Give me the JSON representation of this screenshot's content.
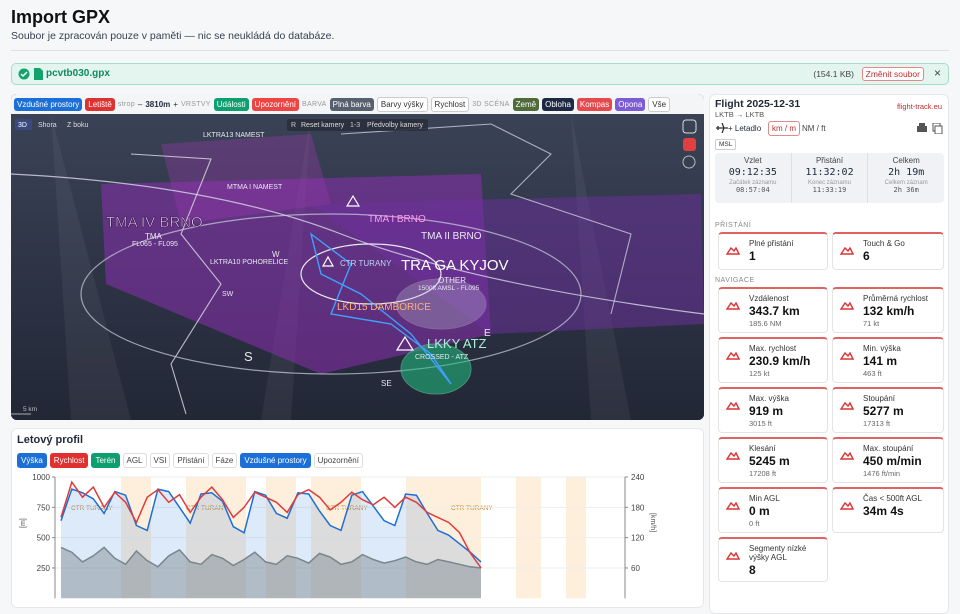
{
  "header": {
    "title": "Import GPX",
    "subtitle": "Soubor je zpracován pouze v paměti — nic se neukládá do databáze."
  },
  "file": {
    "name": "pcvtb030.gpx",
    "size": "(154.1 KB)",
    "change": "Změnit soubor",
    "close": "×"
  },
  "toolbar": [
    "Vzdušné prostory",
    "Letiště",
    "strop",
    "–",
    "3810m",
    "+",
    "VRSTVY",
    "Události",
    "Upozornění",
    "BARVA",
    "Plná barva",
    "Barvy výšky",
    "Rychlost",
    "3D SCÉNA",
    "Země",
    "Obloha",
    "Kompas",
    "Opona",
    "Vše"
  ],
  "map": {
    "view": [
      "3D",
      "Shora",
      "Z boku"
    ],
    "camera": [
      "R",
      "Reset kamery",
      "1-3",
      "Předvolby kamery"
    ],
    "labels": [
      "LKTRA13 NAMEST",
      "MTMA I NAMEST",
      "TMA IV BRNO",
      "TMA",
      "FL065 - FL095",
      "TMA I BRNO",
      "TMA II BRNO",
      "LKTRA10 POHORELICE",
      "W",
      "CTR TURANY",
      "TRA GA KYJOV",
      "OTHER",
      "1500ft AMSL - FL095",
      "SW",
      "LKD15 DAMBORICE",
      "E",
      "LKKY ATZ",
      "CROSSED - ATZ",
      "S",
      "SE"
    ],
    "scale": "5 km"
  },
  "profile": {
    "title": "Letový profil",
    "buttons": [
      "Výška",
      "Rychlost",
      "Terén",
      "AGL",
      "VSI",
      "Přistání",
      "Fáze",
      "Vzdušné prostory",
      "Upozornění"
    ]
  },
  "chart_data": {
    "type": "line",
    "ylabel": "[m]",
    "y2label": "[km/h]",
    "ylim": [
      0,
      1000
    ],
    "yticks": [
      250,
      500,
      750,
      1000
    ],
    "y2lim": [
      0,
      240
    ],
    "y2ticks": [
      60,
      120,
      180,
      240
    ],
    "annotations": [
      "CTR TURANY",
      "CTR TURANY",
      "CTR TURANY",
      "CTR TURANY"
    ],
    "series": [
      {
        "name": "Výška",
        "color": "#1c6fd6",
        "values": [
          640,
          900,
          870,
          820,
          700,
          880,
          850,
          600,
          560,
          900,
          880,
          750,
          620,
          860,
          870,
          800,
          590,
          540,
          880,
          850,
          700,
          660,
          870,
          860,
          720,
          600,
          560,
          850,
          880,
          760,
          640,
          600,
          860,
          850,
          700,
          560,
          520,
          450,
          380,
          300
        ]
      },
      {
        "name": "Rychlost",
        "color": "#e03b3b",
        "axis": "y2",
        "values": [
          160,
          230,
          200,
          220,
          180,
          210,
          190,
          150,
          200,
          215,
          190,
          205,
          170,
          200,
          220,
          195,
          160,
          180,
          210,
          200,
          190,
          170,
          205,
          215,
          200,
          175,
          190,
          210,
          195,
          185,
          200,
          180,
          200,
          190,
          170,
          160,
          150,
          130,
          90,
          60
        ]
      },
      {
        "name": "Terén",
        "color": "#8a8a80",
        "values": [
          420,
          380,
          300,
          350,
          420,
          330,
          280,
          390,
          310,
          260,
          350,
          400,
          300,
          280,
          360,
          330,
          270,
          320,
          380,
          300,
          280,
          350,
          330,
          290,
          370,
          340,
          280,
          300,
          360,
          320,
          290,
          310,
          340,
          300,
          280,
          320,
          300,
          280,
          260,
          250
        ]
      }
    ]
  },
  "panel": {
    "title": "Flight 2025-12-31",
    "site": "flight-track.eu",
    "route": "LKTB → LKTB",
    "aircraft": "+ Letadlo",
    "units": [
      "km / m",
      "NM / ft"
    ],
    "ref": "MSL",
    "times": [
      {
        "label": "Vzlet",
        "value": "09:12:35",
        "sub": "Začátek záznamu",
        "subvalue": "08:57:04"
      },
      {
        "label": "Přistání",
        "value": "11:32:02",
        "sub": "Konec záznamu",
        "subvalue": "11:33:19"
      },
      {
        "label": "Celkem",
        "value": "2h 19m",
        "sub": "Celkem záznam",
        "subvalue": "2h 36m"
      }
    ],
    "sections": [
      "PŘISTÁNÍ",
      "NAVIGACE"
    ],
    "landing": [
      {
        "label": "Plné přistání",
        "value": "1"
      },
      {
        "label": "Touch & Go",
        "value": "6"
      }
    ],
    "nav": [
      {
        "label": "Vzdálenost",
        "value": "343.7 km",
        "sub": "185.6 NM"
      },
      {
        "label": "Průměrná rychlost",
        "value": "132 km/h",
        "sub": "71 kt"
      },
      {
        "label": "Max. rychlost",
        "value": "230.9 km/h",
        "sub": "125 kt"
      },
      {
        "label": "Min. výška",
        "value": "141 m",
        "sub": "463 ft"
      },
      {
        "label": "Max. výška",
        "value": "919 m",
        "sub": "3015 ft"
      },
      {
        "label": "Stoupání",
        "value": "5277 m",
        "sub": "17313 ft"
      },
      {
        "label": "Klesání",
        "value": "5245 m",
        "sub": "17208 ft"
      },
      {
        "label": "Max. stoupání",
        "value": "450 m/min",
        "sub": "1476 ft/min"
      },
      {
        "label": "Min AGL",
        "value": "0 m",
        "sub": "0 ft"
      },
      {
        "label": "Čas < 500ft AGL",
        "value": "34m 4s"
      },
      {
        "label": "Segmenty nízké výšky AGL",
        "value": "8"
      }
    ]
  }
}
